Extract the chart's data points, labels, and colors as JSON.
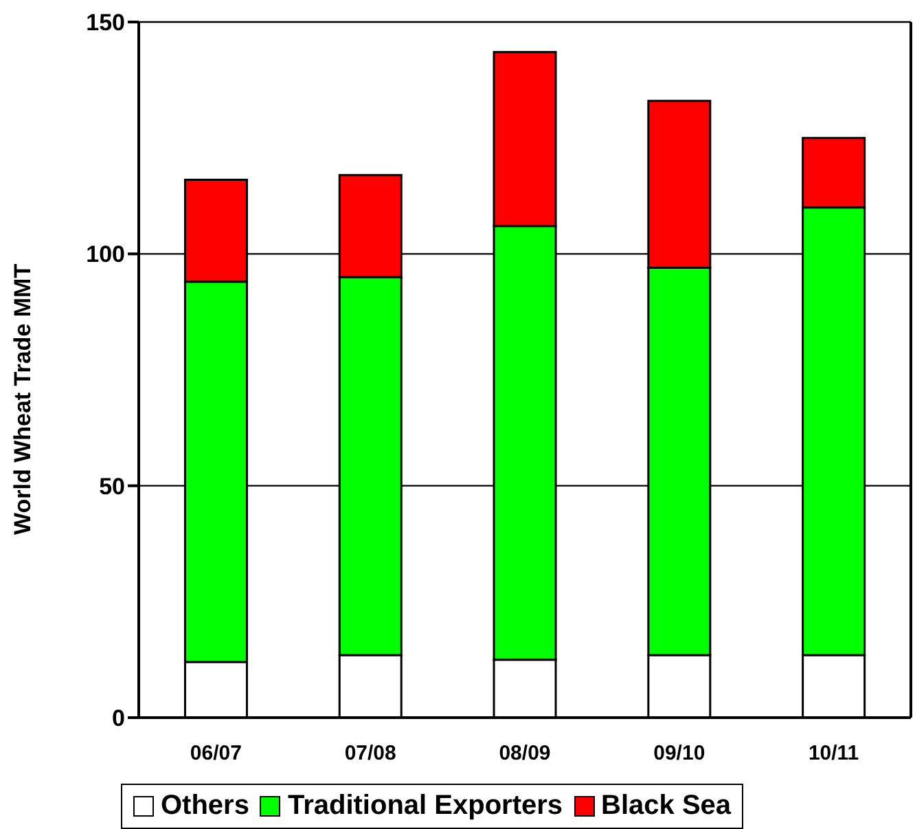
{
  "chart_data": {
    "type": "bar",
    "ylabel": "World Wheat Trade MMT",
    "stacked": true,
    "categories": [
      "06/07",
      "07/08",
      "08/09",
      "09/10",
      "10/11"
    ],
    "series": [
      {
        "name": "Others",
        "color": "#ffffff",
        "values": [
          12,
          13.5,
          12.5,
          13.5,
          13.5
        ]
      },
      {
        "name": "Traditional Exporters",
        "color": "#00ff00",
        "values": [
          82,
          81.5,
          93.5,
          83.5,
          96.5
        ]
      },
      {
        "name": "Black Sea",
        "color": "#ff0000",
        "values": [
          22,
          22,
          37.5,
          36,
          15
        ]
      }
    ],
    "ylim": [
      0,
      150
    ],
    "yticks": [
      0,
      50,
      100,
      150
    ],
    "grid": "y",
    "legend": "bottom"
  }
}
